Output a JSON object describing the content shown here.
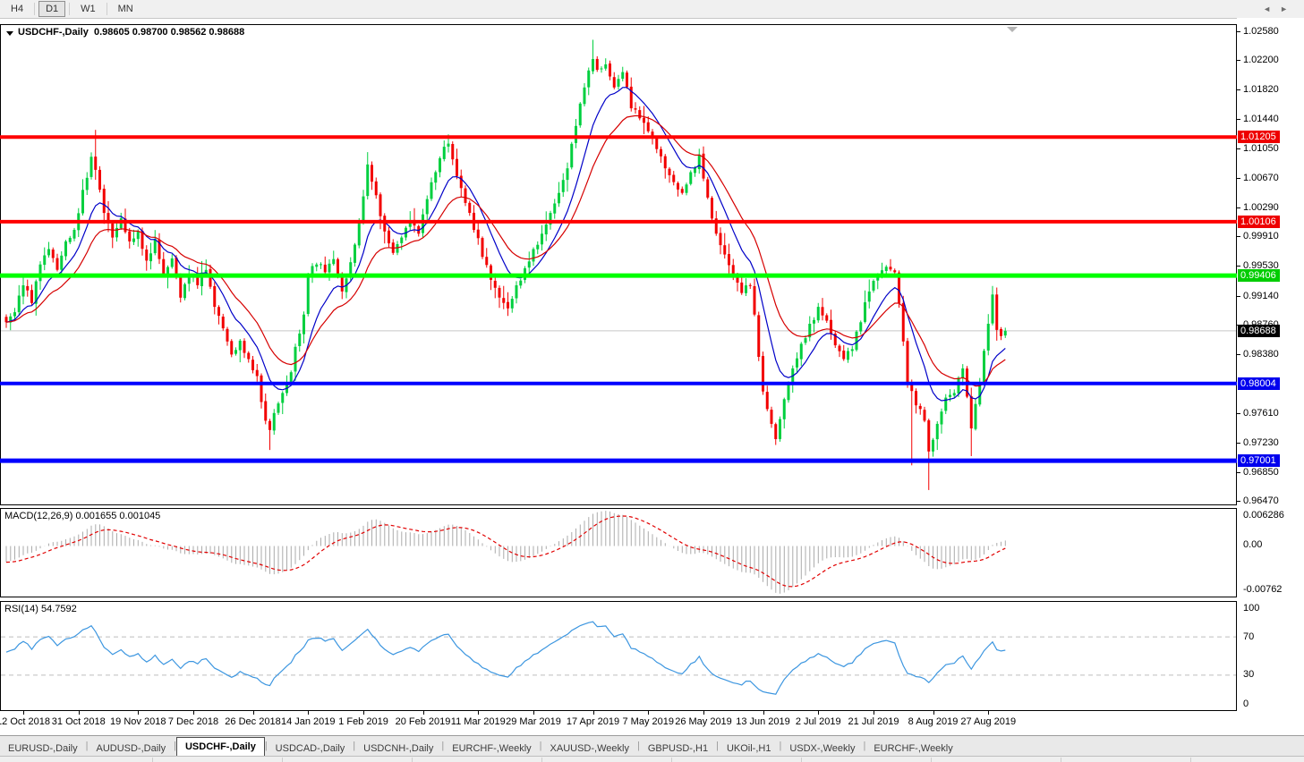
{
  "toolbar": {
    "timeframes": [
      "H4",
      "D1",
      "W1",
      "MN"
    ],
    "active": "D1"
  },
  "chart_data": {
    "type": "candlestick",
    "symbol": "USDCHF-,Daily",
    "last_ohlc_text": "0.98605 0.98700 0.98562 0.98688",
    "last_ohlc": {
      "open": 0.98605,
      "high": 0.987,
      "low": 0.98562,
      "close": 0.98688
    },
    "current_price": "0.98688",
    "y_axis": {
      "price_top": 1.02673,
      "price_bottom": 0.96421,
      "ticks": [
        "1.02580",
        "1.02200",
        "1.01820",
        "1.01440",
        "1.01050",
        "1.00670",
        "1.00290",
        "0.99910",
        "0.99530",
        "0.99140",
        "0.98760",
        "0.98380",
        "0.97610",
        "0.97230",
        "0.96850",
        "0.96470"
      ]
    },
    "axis_markers": [
      {
        "price": "1.01205",
        "bg": "#ee0000"
      },
      {
        "price": "1.00106",
        "bg": "#ee0000"
      },
      {
        "price": "0.99406",
        "bg": "#00cd00"
      },
      {
        "price": "0.98688",
        "bg": "#000000"
      },
      {
        "price": "0.98004",
        "bg": "#0000ee"
      },
      {
        "price": "0.97001",
        "bg": "#0000ee"
      }
    ],
    "hlines": [
      {
        "price": 1.01205,
        "color": "#ff0000",
        "width": 4
      },
      {
        "price": 1.00106,
        "color": "#ff0000",
        "width": 4
      },
      {
        "price": 0.99406,
        "color": "#00ff00",
        "width": 5
      },
      {
        "price": 0.98004,
        "color": "#0000ff",
        "width": 4
      },
      {
        "price": 0.97001,
        "color": "#0000ff",
        "width": 5
      }
    ],
    "x_axis": {
      "labels": [
        "12 Oct 2018",
        "31 Oct 2018",
        "19 Nov 2018",
        "7 Dec 2018",
        "26 Dec 2018",
        "14 Jan 2019",
        "1 Feb 2019",
        "20 Feb 2019",
        "11 Mar 2019",
        "29 Mar 2019",
        "17 Apr 2019",
        "7 May 2019",
        "26 May 2019",
        "13 Jun 2019",
        "2 Jul 2019",
        "21 Jul 2019",
        "8 Aug 2019",
        "27 Aug 2019"
      ],
      "candle_indices": [
        4,
        17,
        31,
        44,
        58,
        71,
        84,
        98,
        111,
        124,
        138,
        151,
        164,
        178,
        191,
        204,
        218,
        231
      ]
    },
    "candles": {
      "count": 236,
      "close_anchors": [
        [
          0,
          0.988
        ],
        [
          2,
          0.9893
        ],
        [
          4,
          0.9928
        ],
        [
          6,
          0.9905
        ],
        [
          8,
          0.9955
        ],
        [
          10,
          0.9975
        ],
        [
          12,
          0.9948
        ],
        [
          14,
          0.9985
        ],
        [
          16,
          1.0
        ],
        [
          18,
          1.0052
        ],
        [
          20,
          1.0095
        ],
        [
          21,
          1.0078
        ],
        [
          23,
          1.0022
        ],
        [
          25,
          0.999
        ],
        [
          27,
          1.0015
        ],
        [
          29,
          0.9985
        ],
        [
          31,
          0.9998
        ],
        [
          33,
          0.996
        ],
        [
          35,
          0.9988
        ],
        [
          37,
          0.9942
        ],
        [
          39,
          0.9963
        ],
        [
          41,
          0.9912
        ],
        [
          43,
          0.994
        ],
        [
          45,
          0.9928
        ],
        [
          47,
          0.9948
        ],
        [
          49,
          0.99
        ],
        [
          51,
          0.9872
        ],
        [
          53,
          0.9838
        ],
        [
          55,
          0.9856
        ],
        [
          57,
          0.9832
        ],
        [
          59,
          0.981
        ],
        [
          61,
          0.9752
        ],
        [
          62,
          0.974
        ],
        [
          63,
          0.9762
        ],
        [
          65,
          0.9788
        ],
        [
          67,
          0.9815
        ],
        [
          68,
          0.9848
        ],
        [
          70,
          0.989
        ],
        [
          71,
          0.994
        ],
        [
          73,
          0.9955
        ],
        [
          75,
          0.9945
        ],
        [
          77,
          0.9962
        ],
        [
          79,
          0.992
        ],
        [
          81,
          0.9958
        ],
        [
          83,
          1.001
        ],
        [
          85,
          1.0085
        ],
        [
          87,
          1.0045
        ],
        [
          89,
          0.9998
        ],
        [
          91,
          0.997
        ],
        [
          93,
          0.999
        ],
        [
          95,
          1.0012
        ],
        [
          97,
          0.9995
        ],
        [
          99,
          1.004
        ],
        [
          101,
          1.0075
        ],
        [
          103,
          1.0108
        ],
        [
          104,
          1.0112
        ],
        [
          106,
          1.007
        ],
        [
          108,
          1.0035
        ],
        [
          110,
          1.0
        ],
        [
          112,
          0.9965
        ],
        [
          114,
          0.9935
        ],
        [
          116,
          0.9912
        ],
        [
          118,
          0.9898
        ],
        [
          120,
          0.9928
        ],
        [
          122,
          0.995
        ],
        [
          124,
          0.9975
        ],
        [
          126,
          0.9995
        ],
        [
          128,
          1.0022
        ],
        [
          130,
          1.0048
        ],
        [
          132,
          1.008
        ],
        [
          134,
          1.0135
        ],
        [
          136,
          1.0185
        ],
        [
          138,
          1.0222
        ],
        [
          139,
          1.0208
        ],
        [
          141,
          1.0215
        ],
        [
          143,
          1.0185
        ],
        [
          145,
          1.0205
        ],
        [
          147,
          1.0158
        ],
        [
          149,
          1.0145
        ],
        [
          151,
          1.0128
        ],
        [
          153,
          1.0105
        ],
        [
          155,
          1.008
        ],
        [
          157,
          1.0062
        ],
        [
          159,
          1.0048
        ],
        [
          161,
          1.0075
        ],
        [
          163,
          1.0098
        ],
        [
          165,
          1.0042
        ],
        [
          167,
          0.9995
        ],
        [
          169,
          0.9968
        ],
        [
          171,
          0.9938
        ],
        [
          173,
          0.9918
        ],
        [
          175,
          0.9928
        ],
        [
          176,
          0.989
        ],
        [
          177,
          0.9835
        ],
        [
          178,
          0.979
        ],
        [
          180,
          0.9748
        ],
        [
          181,
          0.9728
        ],
        [
          183,
          0.978
        ],
        [
          185,
          0.982
        ],
        [
          187,
          0.9852
        ],
        [
          189,
          0.9878
        ],
        [
          191,
          0.99
        ],
        [
          193,
          0.9882
        ],
        [
          195,
          0.985
        ],
        [
          197,
          0.9832
        ],
        [
          199,
          0.9845
        ],
        [
          201,
          0.988
        ],
        [
          203,
          0.992
        ],
        [
          205,
          0.994
        ],
        [
          207,
          0.9952
        ],
        [
          209,
          0.9945
        ],
        [
          210,
          0.9905
        ],
        [
          211,
          0.9855
        ],
        [
          212,
          0.98
        ],
        [
          214,
          0.9772
        ],
        [
          216,
          0.9752
        ],
        [
          217,
          0.9712
        ],
        [
          219,
          0.9748
        ],
        [
          221,
          0.9782
        ],
        [
          223,
          0.9788
        ],
        [
          225,
          0.982
        ],
        [
          227,
          0.9742
        ],
        [
          229,
          0.98
        ],
        [
          231,
          0.9878
        ],
        [
          232,
          0.9916
        ],
        [
          233,
          0.987
        ],
        [
          234,
          0.9862
        ],
        [
          235,
          0.98688
        ]
      ],
      "wick_overrides": {
        "21": {
          "h": 1.013
        },
        "62": {
          "l": 0.9714
        },
        "85": {
          "h": 1.0101
        },
        "104": {
          "h": 1.0124
        },
        "138": {
          "h": 1.0247
        },
        "213": {
          "l": 0.9694
        },
        "217": {
          "l": 0.9662
        },
        "227": {
          "l": 0.9706
        },
        "232": {
          "h": 0.9927
        }
      }
    },
    "moving_averages": [
      {
        "period": 10,
        "color": "#0000c8",
        "name": "ma-fast"
      },
      {
        "period": 20,
        "color": "#d60000",
        "name": "ma-slow"
      }
    ],
    "macd": {
      "label": "MACD(12,26,9)",
      "values": "0.001655 0.001045",
      "params": [
        12,
        26,
        9
      ],
      "axis_max": "0.006286",
      "axis_zero": "0.00",
      "axis_min": "-0.00762"
    },
    "rsi": {
      "label": "RSI(14)",
      "value": "54.7592",
      "period": 14,
      "axis_ticks": [
        100,
        70,
        30,
        0
      ],
      "level_lines": [
        70,
        30
      ]
    },
    "colors": {
      "up": "#00cf3f",
      "down": "#f20000",
      "macd_bar": "#ababab",
      "macd_signal": "#e10000",
      "rsi_line": "#3c96e0",
      "grid": "#c8c8c8"
    }
  },
  "tabs": {
    "items": [
      "EURUSD-,Daily",
      "AUDUSD-,Daily",
      "USDCHF-,Daily",
      "USDCAD-,Daily",
      "USDCNH-,Daily",
      "EURCHF-,Weekly",
      "XAUUSD-,Weekly",
      "GBPUSD-,H1",
      "UKOil-,H1",
      "USDX-,Weekly",
      "EURCHF-,Weekly"
    ],
    "active_index": 2,
    "scroll_left": "◄",
    "scroll_right": "►"
  }
}
